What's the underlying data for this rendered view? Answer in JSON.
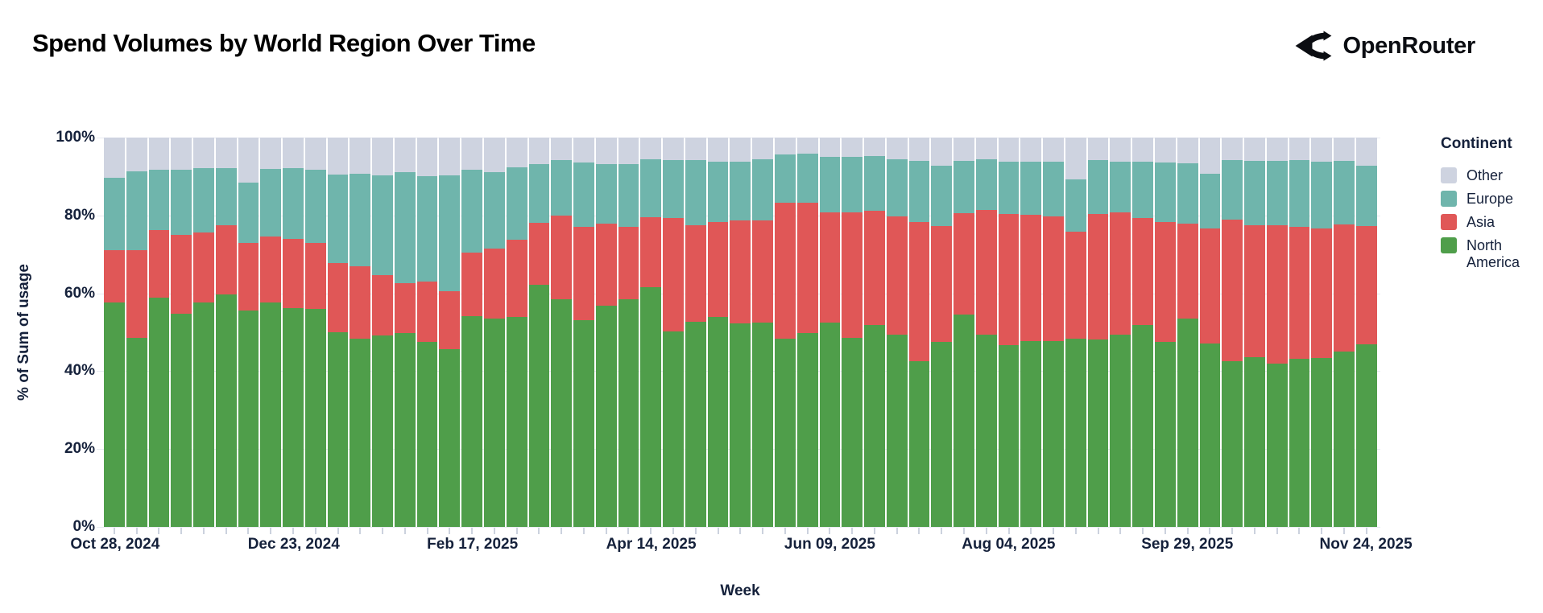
{
  "header": {
    "brand": "OpenRouter"
  },
  "icons": {
    "brand_logo": "route-fork-arrow-icon"
  },
  "chart_data": {
    "type": "bar",
    "stacked": true,
    "stack_unit": "percent",
    "title": "Spend Volumes by World Region Over Time",
    "xlabel": "Week",
    "ylabel": "% of Sum of usage",
    "ylim": [
      0,
      100
    ],
    "grid": true,
    "y_ticks": [
      {
        "value": 0,
        "label": "0%"
      },
      {
        "value": 20,
        "label": "20%"
      },
      {
        "value": 40,
        "label": "40%"
      },
      {
        "value": 60,
        "label": "60%"
      },
      {
        "value": 80,
        "label": "80%"
      },
      {
        "value": 100,
        "label": "100%"
      }
    ],
    "x_tick_indices": [
      0,
      8,
      16,
      24,
      32,
      40,
      48,
      56
    ],
    "x_tick_labels": [
      "Oct 28, 2024",
      "Dec 23, 2024",
      "Feb 17, 2025",
      "Apr 14, 2025",
      "Jun 09, 2025",
      "Aug 04, 2025",
      "Sep 29, 2025",
      "Nov 24, 2025"
    ],
    "categories": [
      "Oct 28, 2024",
      "Nov 04, 2024",
      "Nov 11, 2024",
      "Nov 18, 2024",
      "Nov 25, 2024",
      "Dec 02, 2024",
      "Dec 09, 2024",
      "Dec 16, 2024",
      "Dec 23, 2024",
      "Dec 30, 2024",
      "Jan 06, 2025",
      "Jan 13, 2025",
      "Jan 20, 2025",
      "Jan 27, 2025",
      "Feb 03, 2025",
      "Feb 10, 2025",
      "Feb 17, 2025",
      "Feb 24, 2025",
      "Mar 03, 2025",
      "Mar 10, 2025",
      "Mar 17, 2025",
      "Mar 24, 2025",
      "Mar 31, 2025",
      "Apr 07, 2025",
      "Apr 14, 2025",
      "Apr 21, 2025",
      "Apr 28, 2025",
      "May 05, 2025",
      "May 12, 2025",
      "May 19, 2025",
      "May 26, 2025",
      "Jun 02, 2025",
      "Jun 09, 2025",
      "Jun 16, 2025",
      "Jun 23, 2025",
      "Jun 30, 2025",
      "Jul 07, 2025",
      "Jul 14, 2025",
      "Jul 21, 2025",
      "Jul 28, 2025",
      "Aug 04, 2025",
      "Aug 11, 2025",
      "Aug 18, 2025",
      "Aug 25, 2025",
      "Sep 01, 2025",
      "Sep 08, 2025",
      "Sep 15, 2025",
      "Sep 22, 2025",
      "Sep 29, 2025",
      "Oct 06, 2025",
      "Oct 13, 2025",
      "Oct 20, 2025",
      "Oct 27, 2025",
      "Nov 03, 2025",
      "Nov 10, 2025",
      "Nov 17, 2025",
      "Nov 24, 2025"
    ],
    "series": [
      {
        "name": "North America",
        "color": "#4f9e4a",
        "values": [
          57.7,
          48.5,
          58.8,
          54.8,
          57.7,
          59.8,
          55.6,
          57.7,
          56.2,
          56.0,
          50.0,
          48.4,
          49.2,
          49.8,
          47.5,
          45.6,
          54.1,
          53.6,
          53.9,
          62.2,
          58.4,
          53.1,
          56.9,
          58.4,
          61.6,
          50.1,
          52.6,
          53.9,
          52.2,
          52.4,
          48.4,
          49.7,
          52.4,
          48.6,
          51.9,
          49.3,
          42.5,
          47.5,
          54.5,
          49.4,
          46.7,
          47.7,
          47.7,
          48.4,
          48.1,
          49.4,
          51.9,
          47.6,
          53.6,
          47.0,
          42.5,
          43.6,
          42.0,
          43.2,
          43.4,
          45.1,
          46.8
        ]
      },
      {
        "name": "Asia",
        "color": "#e05757",
        "values": [
          13.4,
          22.5,
          17.5,
          20.3,
          18.0,
          17.6,
          17.3,
          16.8,
          17.8,
          17.0,
          17.8,
          18.5,
          15.5,
          12.9,
          15.6,
          15.0,
          16.4,
          17.8,
          19.9,
          16.0,
          21.5,
          24.0,
          20.9,
          18.6,
          17.9,
          29.2,
          24.8,
          24.4,
          26.6,
          26.4,
          34.9,
          33.6,
          28.3,
          32.1,
          29.2,
          30.4,
          35.8,
          29.7,
          26.0,
          32.0,
          33.6,
          32.4,
          32.0,
          27.5,
          32.3,
          31.4,
          27.4,
          30.7,
          24.2,
          29.6,
          36.5,
          33.8,
          35.4,
          33.9,
          33.2,
          32.5,
          30.5
        ]
      },
      {
        "name": "Europe",
        "color": "#6fb5ac",
        "values": [
          18.6,
          20.3,
          15.5,
          16.6,
          16.5,
          14.8,
          15.5,
          17.4,
          18.2,
          18.8,
          22.6,
          23.9,
          25.5,
          28.4,
          27.0,
          29.6,
          21.3,
          19.7,
          18.5,
          15.0,
          14.4,
          16.4,
          15.4,
          16.2,
          14.9,
          15.0,
          16.8,
          15.4,
          15.1,
          15.7,
          12.3,
          12.5,
          14.3,
          14.4,
          14.2,
          14.8,
          15.7,
          15.5,
          13.5,
          13.0,
          13.4,
          13.7,
          14.1,
          13.4,
          13.8,
          12.9,
          14.5,
          15.2,
          15.6,
          14.1,
          15.3,
          16.6,
          16.6,
          17.1,
          17.3,
          16.4,
          15.5
        ]
      },
      {
        "name": "Other",
        "color": "#ced3e0",
        "values": [
          10.3,
          8.7,
          8.2,
          8.3,
          7.8,
          7.8,
          11.6,
          8.1,
          7.8,
          8.2,
          9.6,
          9.2,
          9.8,
          8.9,
          9.9,
          9.8,
          8.2,
          8.9,
          7.7,
          6.8,
          5.7,
          6.5,
          6.8,
          6.8,
          5.6,
          5.7,
          5.8,
          6.3,
          6.1,
          5.5,
          4.4,
          4.2,
          5.0,
          4.9,
          4.7,
          5.5,
          6.0,
          7.3,
          6.0,
          5.6,
          6.3,
          6.2,
          6.2,
          10.7,
          5.8,
          6.3,
          6.2,
          6.5,
          6.6,
          9.3,
          5.7,
          6.0,
          6.0,
          5.8,
          6.1,
          6.0,
          7.2
        ]
      }
    ],
    "legend": {
      "title": "Continent",
      "position": "right",
      "order": [
        "Other",
        "Europe",
        "Asia",
        "North America"
      ]
    }
  }
}
